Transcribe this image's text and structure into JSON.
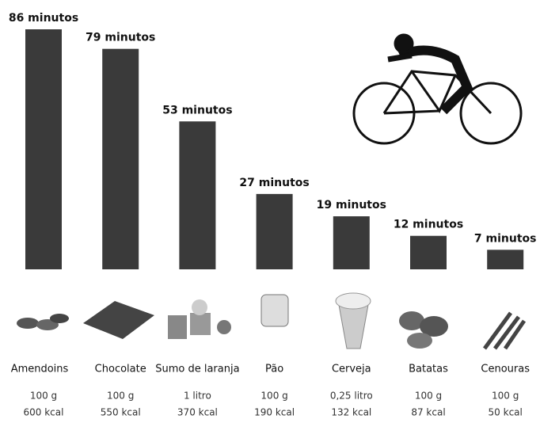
{
  "chart_data": {
    "type": "bar",
    "categories": [
      "Amendoins",
      "Chocolate",
      "Sumo de laranja",
      "Pão",
      "Cerveja",
      "Batatas",
      "Cenouras"
    ],
    "values": [
      86,
      79,
      53,
      27,
      19,
      12,
      7
    ],
    "value_labels": [
      "86 minutos",
      "79 minutos",
      "53 minutos",
      "27 minutos",
      "19 minutos",
      "12 minutos",
      "7 minutos"
    ],
    "quantities": [
      "100 g",
      "100 g",
      "1 litro",
      "100 g",
      "0,25 litro",
      "100 g",
      "100 g"
    ],
    "calories": [
      "600 kcal",
      "550 kcal",
      "370 kcal",
      "190 kcal",
      "132 kcal",
      "87 kcal",
      "50 kcal"
    ],
    "color": "#3a3a3a"
  }
}
